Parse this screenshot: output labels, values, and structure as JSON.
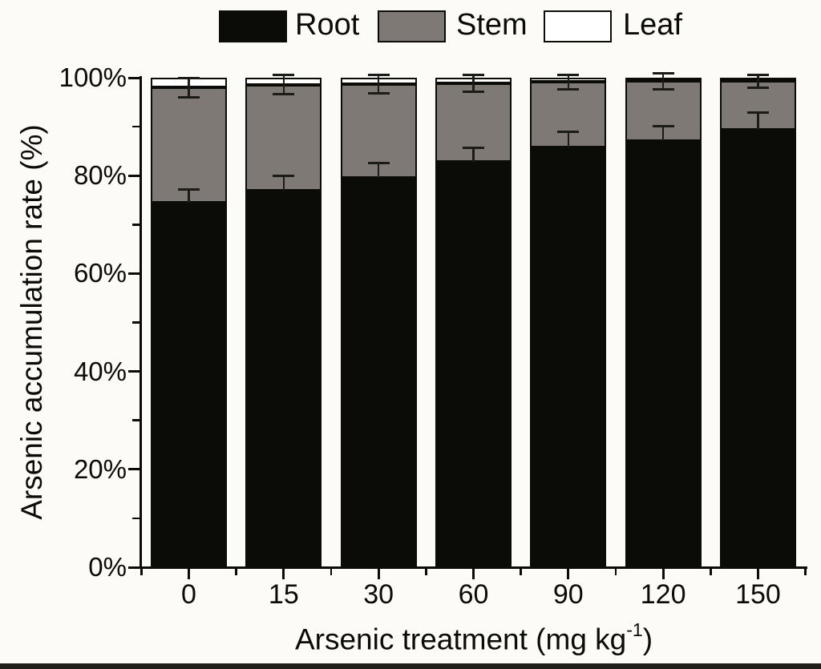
{
  "figure": {
    "background": "#FCFBF7",
    "bottom_edge_color": "#201F1A"
  },
  "legend": {
    "position": "top",
    "items": [
      {
        "label": "Root",
        "swatch_color": "#0B0B07"
      },
      {
        "label": "Stem",
        "swatch_color": "#7E7974"
      },
      {
        "label": "Leaf",
        "swatch_color": "#FFFFFF"
      }
    ]
  },
  "axes": {
    "ylabel": "Arsenic accumulation rate (%)",
    "xlabel_full": "Arsenic treatment (mg kg-1)",
    "xlabel_parts": {
      "main": "Arsenic treatment (mg kg",
      "sup": "-1",
      "end": ")"
    },
    "y_tick_labels": [
      "0%",
      "20%",
      "40%",
      "60%",
      "80%",
      "100%"
    ],
    "x_tick_labels": [
      "0",
      "15",
      "30",
      "60",
      "90",
      "120",
      "150"
    ]
  },
  "chart_data": {
    "type": "bar",
    "stacked": true,
    "title": "",
    "xlabel": "Arsenic treatment (mg kg-1)",
    "ylabel": "Arsenic accumulation rate (%)",
    "categories": [
      "0",
      "15",
      "30",
      "60",
      "90",
      "120",
      "150"
    ],
    "ylim": [
      0,
      100
    ],
    "y_major_ticks": [
      0,
      20,
      40,
      60,
      80,
      100
    ],
    "y_minor_ticks": [
      10,
      30,
      50,
      70,
      90
    ],
    "grid": false,
    "legend_position": "top",
    "bar_outline_color": "#0B0B07",
    "series": [
      {
        "name": "Root",
        "color": "#0B0B07",
        "values": [
          74.5,
          77.0,
          79.6,
          82.8,
          85.7,
          87.0,
          89.4
        ],
        "errors": [
          2.7,
          2.9,
          3.0,
          2.9,
          3.3,
          3.1,
          3.4
        ],
        "error_style": "upper"
      },
      {
        "name": "Stem",
        "color": "#7E7974",
        "values": [
          23.5,
          21.6,
          19.1,
          16.0,
          13.4,
          12.3,
          9.9
        ],
        "errors": [
          2.0,
          1.9,
          1.9,
          1.7,
          1.5,
          1.6,
          1.3
        ],
        "error_style": "both-on-cumulative"
      },
      {
        "name": "Leaf",
        "color": "#FFFFFF",
        "values": [
          2.0,
          1.4,
          1.3,
          1.2,
          0.9,
          0.7,
          0.7
        ],
        "errors": null,
        "error_style": "none"
      }
    ]
  }
}
